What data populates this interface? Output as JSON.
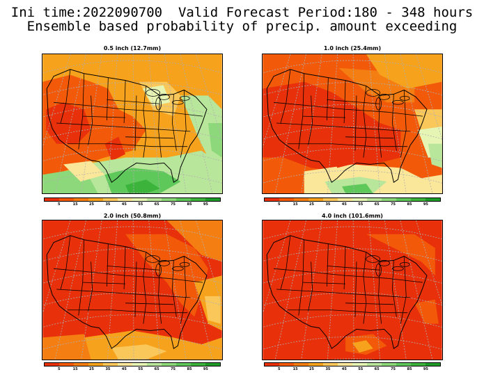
{
  "header": {
    "line1": "Ini time:2022090700  Valid Forecast Period:180 - 348 hours",
    "line2": "Ensemble based probability of precip. amount exceeding"
  },
  "colorbar": {
    "colors": [
      "#e8300a",
      "#f25a0a",
      "#f47e12",
      "#f7a21c",
      "#fac85a",
      "#fbe79a",
      "#e6f5b4",
      "#b8e69a",
      "#8cd87a",
      "#5ec85a",
      "#3cb43c",
      "#1e9a28"
    ],
    "labels": [
      "5",
      "15",
      "25",
      "35",
      "45",
      "55",
      "65",
      "75",
      "85",
      "95"
    ]
  },
  "panels": [
    {
      "title": "0.5 inch (12.7mm)",
      "scheme": "mixed"
    },
    {
      "title": "1.0 inch (25.4mm)",
      "scheme": "mostly-warm"
    },
    {
      "title": "2.0 inch (50.8mm)",
      "scheme": "warm"
    },
    {
      "title": "4.0 inch (101.6mm)",
      "scheme": "hot"
    }
  ]
}
